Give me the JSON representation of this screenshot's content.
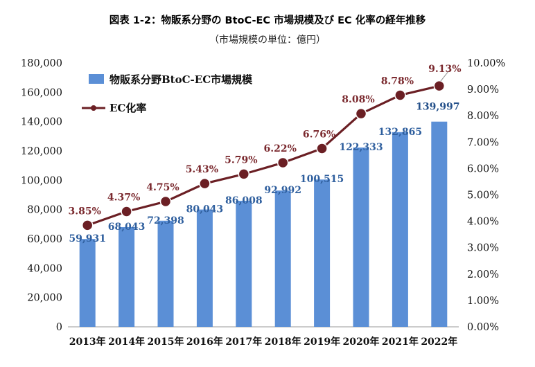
{
  "chart_data": {
    "type": "bar",
    "title": "図表 1-2：物販系分野の BtoC-EC 市場規模及び EC 化率の経年推移",
    "subtitle": "（市場規模の単位：億円）",
    "categories": [
      "2013年",
      "2014年",
      "2015年",
      "2016年",
      "2017年",
      "2018年",
      "2019年",
      "2020年",
      "2021年",
      "2022年"
    ],
    "series": [
      {
        "name": "物販系分野BtoC-EC市場規模",
        "type": "bar",
        "axis": "left",
        "color": "#5b8fd6",
        "values": [
          59931,
          68043,
          72398,
          80043,
          86008,
          92992,
          100515,
          122333,
          132865,
          139997
        ],
        "labels": [
          "59,931",
          "68,043",
          "72,398",
          "80,043",
          "86,008",
          "92,992",
          "100,515",
          "122,333",
          "132,865",
          "139,997"
        ]
      },
      {
        "name": "EC化率",
        "type": "line",
        "axis": "right",
        "color": "#6b1f24",
        "values": [
          3.85,
          4.37,
          4.75,
          5.43,
          5.79,
          6.22,
          6.76,
          8.08,
          8.78,
          9.13
        ],
        "labels": [
          "3.85%",
          "4.37%",
          "4.75%",
          "5.43%",
          "5.79%",
          "6.22%",
          "6.76%",
          "8.08%",
          "8.78%",
          "9.13%"
        ]
      }
    ],
    "ylim_left": [
      0,
      180000
    ],
    "ylim_right": [
      0,
      10
    ],
    "yticks_left": [
      "0",
      "20,000",
      "40,000",
      "60,000",
      "80,000",
      "100,000",
      "120,000",
      "140,000",
      "160,000",
      "180,000"
    ],
    "yticks_right": [
      "0.00%",
      "1.00%",
      "2.00%",
      "3.00%",
      "4.00%",
      "5.00%",
      "6.00%",
      "7.00%",
      "8.00%",
      "9.00%",
      "10.00%"
    ],
    "legend": {
      "position": "top-left",
      "bar_label": "物販系分野BtoC-EC市場規模",
      "line_label": "EC化率"
    },
    "grid": false,
    "label_colors": {
      "bar_label": "#2f5f9e",
      "line_label": "#7b2a2f",
      "highlight_bar": "#24508a",
      "highlight_line": "#7b2a2f"
    }
  }
}
